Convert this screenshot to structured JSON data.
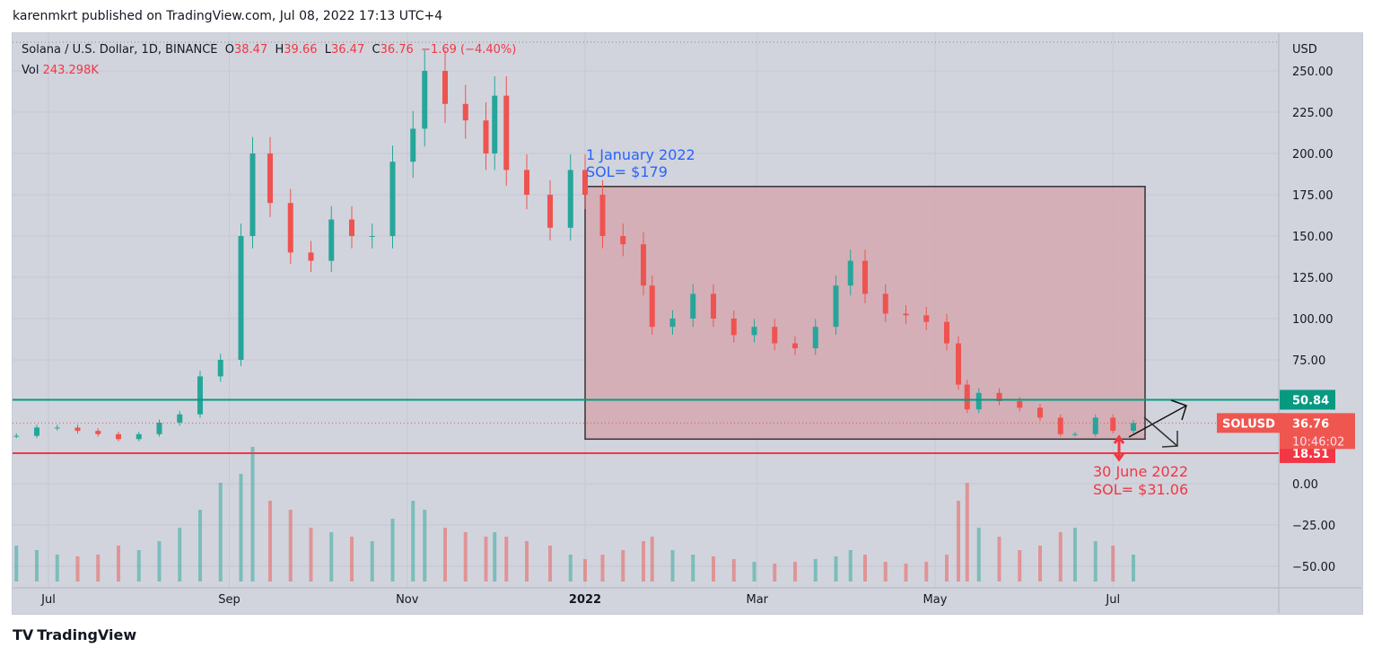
{
  "header": {
    "published": "karenmkrt published on TradingView.com, Jul 08, 2022 17:13 UTC+4"
  },
  "legend": {
    "symbol": "Solana / U.S. Dollar, 1D, BINANCE",
    "o_label": "O",
    "o": "38.47",
    "h_label": "H",
    "h": "39.66",
    "l_label": "L",
    "l": "36.47",
    "c_label": "C",
    "c": "36.76",
    "change": "−1.69 (−4.40%)",
    "vol_label": "Vol",
    "vol": "243.298K"
  },
  "footer": {
    "logo": "TradingView"
  },
  "colors": {
    "up": "#26a69a",
    "down": "#ef5350",
    "box_fill": "#d4a3ab",
    "green_line": "#089981",
    "red_line": "#f23645",
    "annotation_blue": "#2962ff",
    "annotation_red": "#f23645"
  },
  "chart_data": {
    "type": "candlestick",
    "title": "",
    "yaxis": {
      "unit": "USD",
      "ticks": [
        "250.00",
        "225.00",
        "200.00",
        "175.00",
        "150.00",
        "125.00",
        "100.00",
        "75.00",
        "0.00",
        "−25.00",
        "−50.00"
      ],
      "tick_values": [
        250,
        225,
        200,
        175,
        150,
        125,
        100,
        75,
        0,
        -25,
        -50
      ],
      "range": [
        -58,
        262
      ]
    },
    "xaxis": {
      "ticks": [
        "Jul",
        "Sep",
        "Nov",
        "2022",
        "Mar",
        "May",
        "Jul"
      ],
      "tick_dates": [
        "2021-07-01",
        "2021-09-01",
        "2021-11-01",
        "2022-01-01",
        "2022-03-01",
        "2022-05-01",
        "2022-07-01"
      ],
      "range": [
        "2021-06-19",
        "2022-09-25"
      ]
    },
    "dates": [
      "2021-06-20",
      "2021-06-27",
      "2021-07-04",
      "2021-07-11",
      "2021-07-18",
      "2021-07-25",
      "2021-08-01",
      "2021-08-08",
      "2021-08-15",
      "2021-08-22",
      "2021-08-29",
      "2021-09-05",
      "2021-09-09",
      "2021-09-15",
      "2021-09-22",
      "2021-09-29",
      "2021-10-06",
      "2021-10-13",
      "2021-10-20",
      "2021-10-27",
      "2021-11-03",
      "2021-11-07",
      "2021-11-14",
      "2021-11-21",
      "2021-11-28",
      "2021-12-01",
      "2021-12-05",
      "2021-12-12",
      "2021-12-20",
      "2021-12-27",
      "2022-01-01",
      "2022-01-07",
      "2022-01-14",
      "2022-01-21",
      "2022-01-24",
      "2022-01-31",
      "2022-02-07",
      "2022-02-14",
      "2022-02-21",
      "2022-02-28",
      "2022-03-07",
      "2022-03-14",
      "2022-03-21",
      "2022-03-28",
      "2022-04-02",
      "2022-04-07",
      "2022-04-14",
      "2022-04-21",
      "2022-04-28",
      "2022-05-05",
      "2022-05-09",
      "2022-05-12",
      "2022-05-16",
      "2022-05-23",
      "2022-05-30",
      "2022-06-06",
      "2022-06-13",
      "2022-06-18",
      "2022-06-25",
      "2022-07-01",
      "2022-07-08"
    ],
    "close": [
      29,
      34,
      34,
      32,
      30,
      27,
      30,
      37,
      42,
      65,
      75,
      150,
      200,
      170,
      140,
      135,
      160,
      150,
      150,
      195,
      215,
      250,
      230,
      220,
      200,
      235,
      190,
      175,
      155,
      190,
      175,
      150,
      145,
      120,
      95,
      100,
      115,
      100,
      90,
      95,
      85,
      82,
      95,
      120,
      135,
      115,
      103,
      102,
      98,
      85,
      60,
      45,
      55,
      50,
      46,
      40,
      30,
      30,
      40,
      32,
      36.76
    ],
    "volume": [
      40,
      35,
      30,
      28,
      30,
      40,
      35,
      45,
      60,
      80,
      110,
      120,
      150,
      90,
      80,
      60,
      55,
      50,
      45,
      70,
      90,
      80,
      60,
      55,
      50,
      55,
      50,
      45,
      40,
      30,
      25,
      30,
      35,
      45,
      50,
      35,
      30,
      28,
      25,
      22,
      20,
      22,
      25,
      28,
      35,
      30,
      22,
      20,
      22,
      30,
      90,
      110,
      60,
      50,
      35,
      40,
      55,
      60,
      45,
      40,
      30
    ],
    "horizontal_lines": [
      {
        "price": 50.84,
        "label": "50.84",
        "color": "#089981"
      },
      {
        "price": 18.51,
        "label": "18.51",
        "color": "#f23645"
      }
    ],
    "last_price": {
      "symbol": "SOLUSD",
      "price": "36.76",
      "countdown": "10:46:02"
    },
    "annotations": [
      {
        "text_line1": "1 January 2022",
        "text_line2": "SOL= $179",
        "date": "2022-01-01",
        "price": 179
      },
      {
        "text_line1": "30 June 2022",
        "text_line2": "SOL= $31.06",
        "date": "2022-06-30",
        "price": 31.06
      }
    ],
    "box": {
      "from_date": "2022-01-01",
      "to_date": "2022-07-12",
      "top_price": 180,
      "bottom_price": 27
    }
  }
}
